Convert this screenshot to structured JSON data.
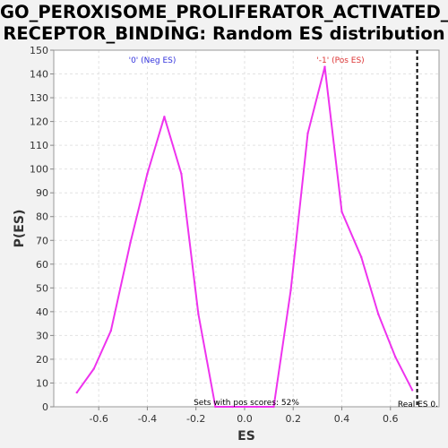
{
  "chart_data": {
    "type": "line",
    "title_line1": "GO_PEROXISOME_PROLIFERATOR_ACTIVATED_",
    "title_line2": "RECEPTOR_BINDING: Random ES distribution",
    "xlabel": "ES",
    "ylabel": "P(ES)",
    "xlim": [
      -0.785,
      0.8
    ],
    "ylim": [
      0,
      150
    ],
    "x_ticks": [
      "-0.6",
      "-0.4",
      "-0.2",
      "0.0",
      "0.2",
      "0.4",
      "0.6"
    ],
    "x_tick_values": [
      -0.6,
      -0.4,
      -0.2,
      0.0,
      0.2,
      0.4,
      0.6
    ],
    "y_ticks": [
      "0",
      "10",
      "20",
      "30",
      "40",
      "50",
      "60",
      "70",
      "80",
      "90",
      "100",
      "110",
      "120",
      "130",
      "140",
      "150"
    ],
    "y_tick_values": [
      0,
      10,
      20,
      30,
      40,
      50,
      60,
      70,
      80,
      90,
      100,
      110,
      120,
      130,
      140,
      150
    ],
    "grid": true,
    "series": [
      {
        "color": "#ee33ee",
        "x": [
          -0.69,
          -0.62,
          -0.55,
          -0.47,
          -0.4,
          -0.33,
          -0.26,
          -0.19,
          -0.12,
          -0.05,
          0.05,
          0.12,
          0.19,
          0.26,
          0.33,
          0.4,
          0.48,
          0.55,
          0.62,
          0.69
        ],
        "y": [
          6,
          16,
          32,
          69,
          98,
          122,
          98,
          39,
          0,
          0,
          0,
          0,
          49,
          115,
          143,
          82,
          63,
          39,
          21,
          7
        ]
      }
    ],
    "real_es_x": 0.71,
    "annotations": {
      "neg_label": "'0' (Neg ES)",
      "pos_label": "'-1' (Pos ES)",
      "sets_label": "Sets with pos scores: 52%",
      "real_es_label": "Real ES 0."
    },
    "colors": {
      "neg_label": "#3333dd",
      "pos_label": "#dd3333",
      "sets_label": "#000000",
      "real_es_label": "#000000",
      "real_es_line": "#000000"
    }
  }
}
